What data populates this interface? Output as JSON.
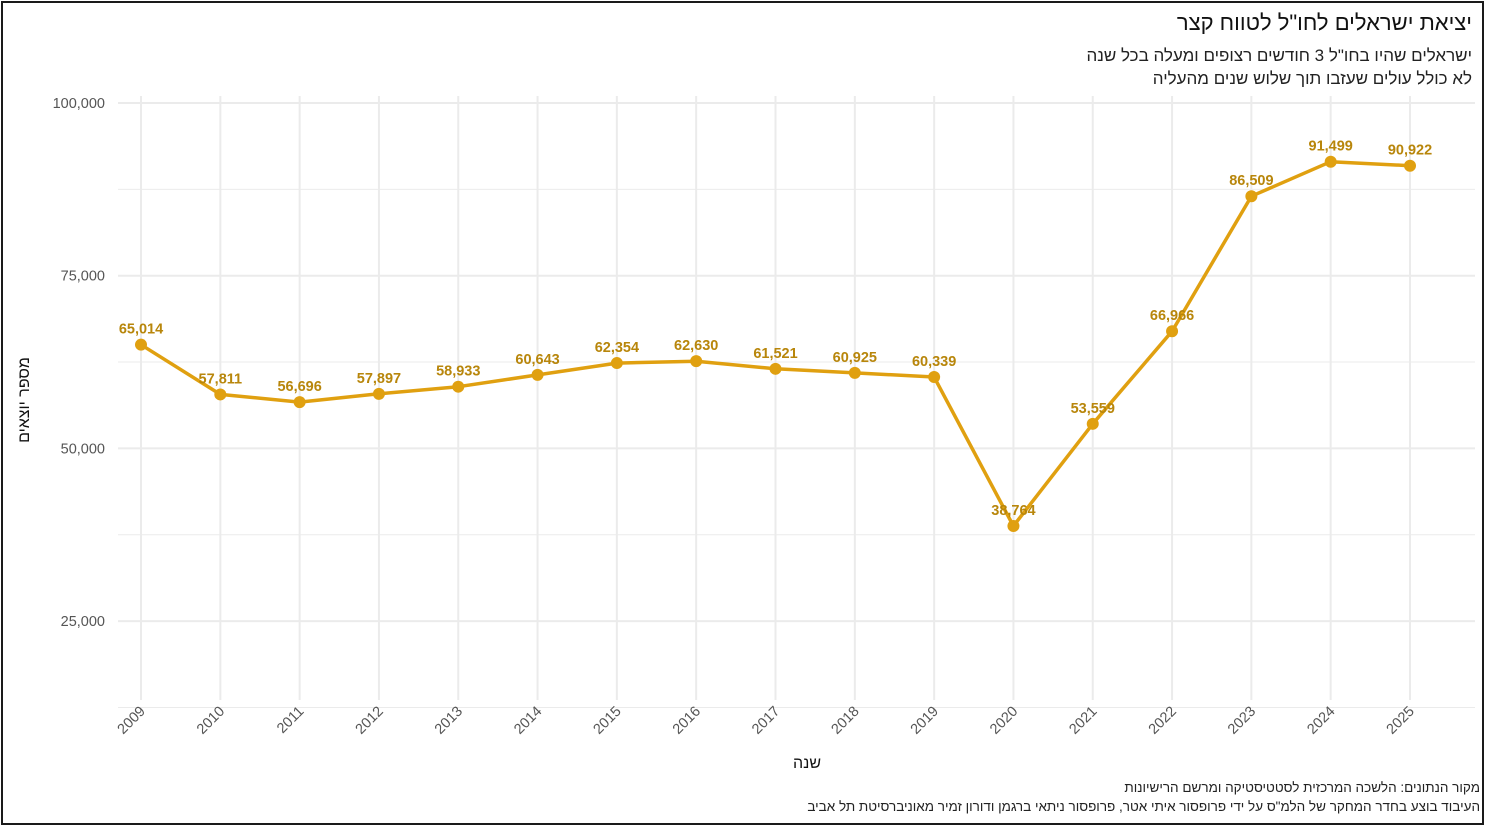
{
  "title": "יציאת ישראלים לחו\"ל לטווח קצר",
  "subtitle": [
    "ישראלים שהיו בחו\"ל 3 חודשים רצופים ומעלה בכל שנה",
    "לא כולל עולים שעזבו תוך שלוש שנים מהעליה"
  ],
  "caption": [
    "מקור הנתונים: הלשכה המרכזית לסטטיסטיקה ומרשם הרישיונות",
    "העיבוד בוצע בחדר המחקר של הלמ\"ס על ידי פרופסור איתי אטר, פרופסור ניתאי ברגמן ודורון זמיר מאוניברסיטת תל אביב"
  ],
  "chart_data": {
    "type": "line",
    "x": [
      2009,
      2010,
      2011,
      2012,
      2013,
      2014,
      2015,
      2016,
      2017,
      2018,
      2019,
      2020,
      2021,
      2022,
      2023,
      2024,
      2025
    ],
    "series": [
      {
        "values": [
          65014,
          57811,
          56696,
          57897,
          58933,
          60643,
          62354,
          62630,
          61521,
          60925,
          60339,
          38764,
          53559,
          66966,
          86509,
          91499,
          90922
        ]
      }
    ],
    "data_labels": [
      "65,014",
      "57,811",
      "56,696",
      "57,897",
      "58,933",
      "60,643",
      "62,354",
      "62,630",
      "61,521",
      "60,925",
      "60,339",
      "38,764",
      "53,559",
      "66,966",
      "86,509",
      "91,499",
      "90,922"
    ],
    "yticks": [
      25000,
      50000,
      75000,
      100000
    ],
    "ytick_labels": [
      "25,000",
      "50,000",
      "75,000",
      "100,000"
    ],
    "xlabel": "שנה",
    "ylabel": "מספר יוצאים",
    "ylim": [
      15000,
      100000
    ],
    "grid": true,
    "color": "#e0a010",
    "label_color": "#b8860b",
    "grid_color": "#ebebeb"
  }
}
